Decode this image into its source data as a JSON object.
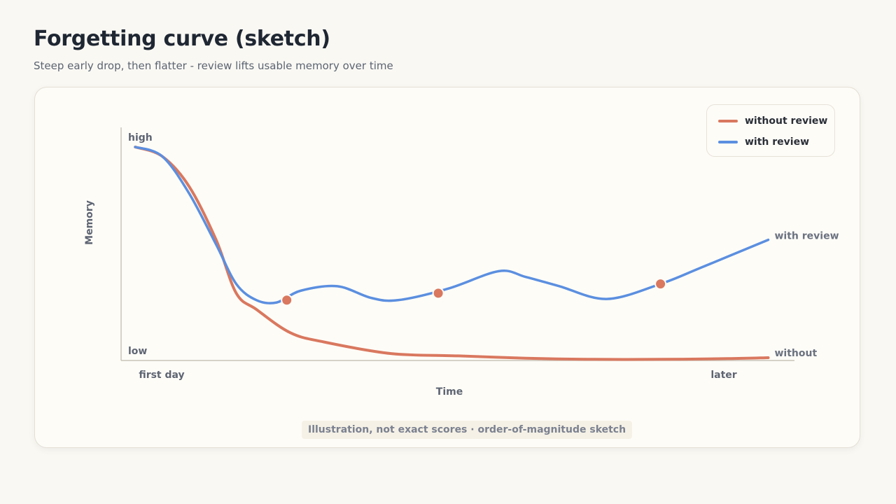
{
  "header": {
    "title": "Forgetting curve (sketch)",
    "subtitle": "Steep early drop, then flatter - review lifts usable memory over time"
  },
  "note": "Illustration, not exact scores · order-of-magnitude sketch",
  "colors": {
    "without": "#d9785f",
    "with": "#5b8fe0",
    "axis": "#c9c3b8"
  },
  "chart_data": {
    "type": "line",
    "xlabel": "Time",
    "ylabel": "Memory",
    "xlim": [
      0,
      100
    ],
    "ylim": [
      0,
      100
    ],
    "x_tick_labels": [
      {
        "x": 6,
        "label": "first day"
      },
      {
        "x": 94,
        "label": "later"
      }
    ],
    "y_tick_labels": [
      {
        "y": 100,
        "label": "high"
      },
      {
        "y": 5,
        "label": "low"
      }
    ],
    "legend": {
      "placement": "top-right",
      "entries": [
        {
          "series": "without",
          "label": "without review"
        },
        {
          "series": "with",
          "label": "with review"
        }
      ]
    },
    "series": [
      {
        "key": "without",
        "name": "without review",
        "end_label": "without",
        "points": [
          [
            2,
            92
          ],
          [
            6,
            88
          ],
          [
            10,
            75
          ],
          [
            14,
            52
          ],
          [
            17,
            29
          ],
          [
            20,
            22
          ],
          [
            25,
            12
          ],
          [
            30,
            8
          ],
          [
            40,
            3
          ],
          [
            50,
            2
          ],
          [
            60,
            1
          ],
          [
            70,
            0.5
          ],
          [
            80,
            0.5
          ],
          [
            90,
            0.8
          ],
          [
            96,
            1.2
          ]
        ]
      },
      {
        "key": "with",
        "name": "with review",
        "end_label": "with review",
        "points": [
          [
            2,
            92
          ],
          [
            6,
            88
          ],
          [
            10,
            72
          ],
          [
            14,
            50
          ],
          [
            17,
            33
          ],
          [
            20,
            26
          ],
          [
            23,
            25
          ],
          [
            26.5,
            30
          ],
          [
            32,
            32
          ],
          [
            37,
            27
          ],
          [
            41,
            26
          ],
          [
            48.5,
            31
          ],
          [
            56,
            38.5
          ],
          [
            60,
            36
          ],
          [
            65,
            32
          ],
          [
            72,
            26.5
          ],
          [
            80,
            33
          ],
          [
            86,
            40
          ],
          [
            96,
            52
          ]
        ],
        "review_points": [
          [
            24.5,
            26
          ],
          [
            47,
            29
          ],
          [
            80,
            33
          ]
        ]
      }
    ]
  }
}
